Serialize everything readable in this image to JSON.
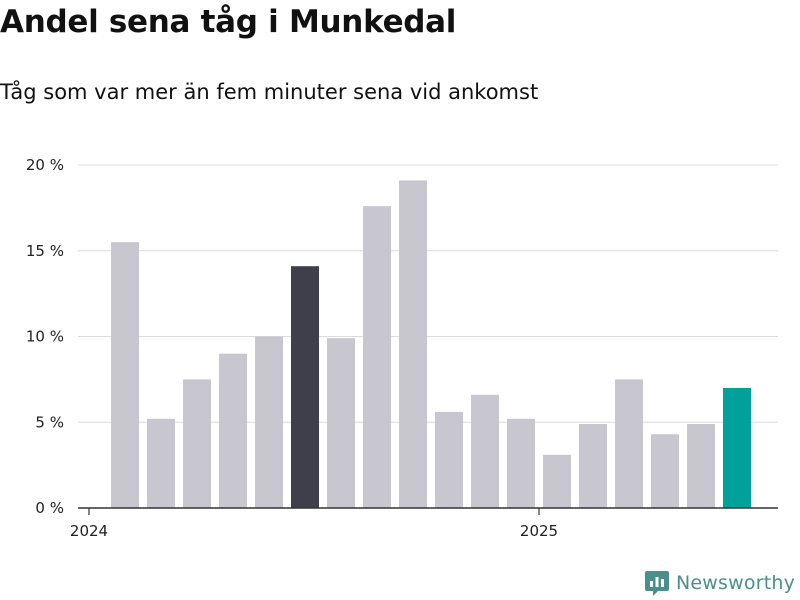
{
  "header": {
    "title": "Andel sena tåg i Munkedal",
    "subtitle": "Tåg som var mer än fem minuter sena vid ankomst"
  },
  "brand": {
    "name": "Newsworthy",
    "icon": "newsworthy-logo-icon",
    "color": "#4a8f8c"
  },
  "chart_data": {
    "type": "bar",
    "categories": [
      "2024-01",
      "2024-02",
      "2024-03",
      "2024-04",
      "2024-05",
      "2024-06",
      "2024-07",
      "2024-08",
      "2024-09",
      "2024-10",
      "2024-11",
      "2024-12",
      "2025-01",
      "2025-02",
      "2025-03",
      "2025-04",
      "2025-05",
      "2025-06"
    ],
    "values": [
      15.5,
      5.2,
      7.5,
      9.0,
      10.0,
      14.1,
      9.9,
      17.6,
      19.1,
      5.6,
      6.6,
      5.2,
      3.1,
      4.9,
      7.5,
      4.3,
      4.9,
      7.0
    ],
    "highlight": {
      "2024-06": "#3f3e4b",
      "2025-06": "#00a19a"
    },
    "default_color": "#c8c7d0",
    "ylim": [
      0,
      20
    ],
    "yticks": [
      {
        "value": 0,
        "label": "0 %"
      },
      {
        "value": 5,
        "label": "5 %"
      },
      {
        "value": 10,
        "label": "10 %"
      },
      {
        "value": 15,
        "label": "15 %"
      },
      {
        "value": 20,
        "label": "20 %"
      }
    ],
    "xticks": [
      {
        "at": "2024-01",
        "label": "2024"
      },
      {
        "at": "2025-01",
        "label": "2025"
      }
    ],
    "grid": true,
    "xlabel": "",
    "ylabel": ""
  }
}
